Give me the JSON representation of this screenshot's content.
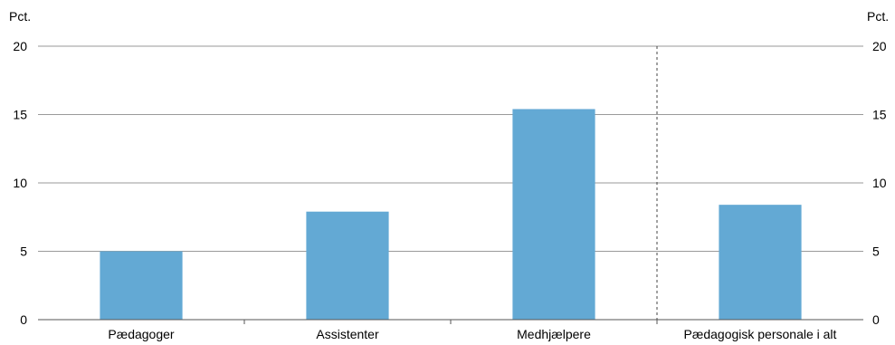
{
  "chart_data": {
    "type": "bar",
    "categories": [
      "Pædagoger",
      "Assistenter",
      "Medhjælpere",
      "Pædagogisk personale i alt"
    ],
    "values": [
      5.0,
      7.9,
      15.4,
      8.4
    ],
    "ylim": [
      0,
      20
    ],
    "yticks": [
      0,
      5,
      10,
      15,
      20
    ],
    "unit_left": "Pct.",
    "unit_right": "Pct.",
    "grid": true,
    "separator_before_category": 3,
    "bar_color": "#63A9D4"
  }
}
